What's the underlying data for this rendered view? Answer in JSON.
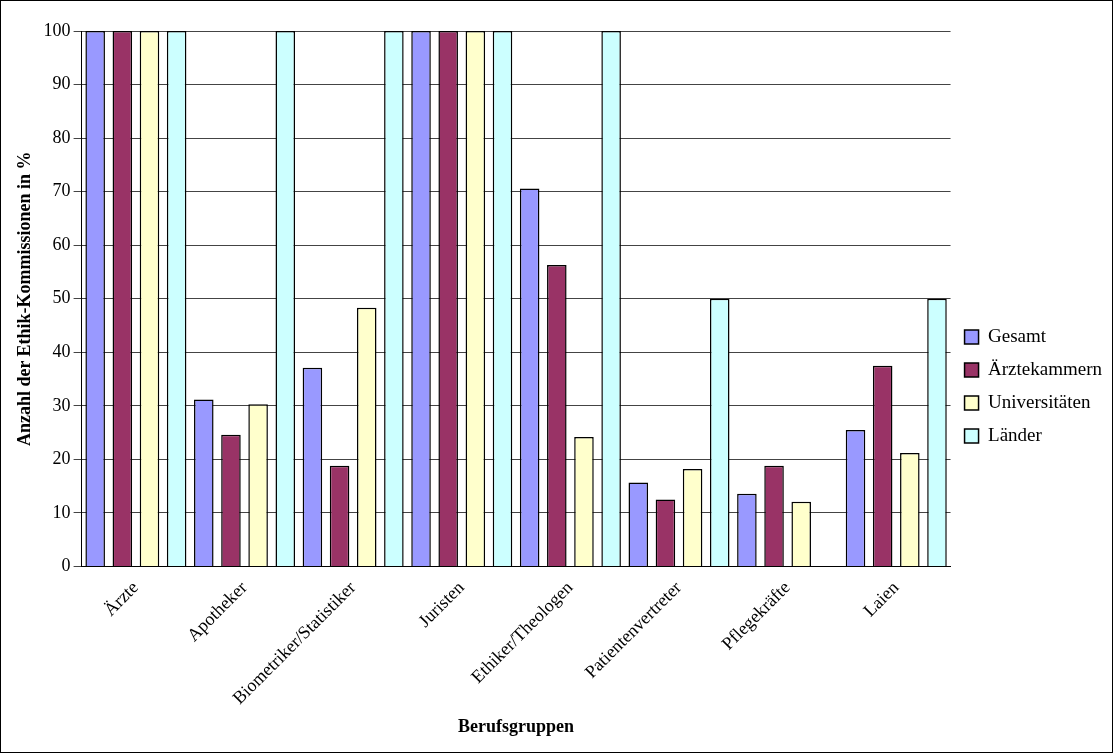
{
  "chart_data": {
    "type": "bar",
    "xlabel": "Berufsgruppen",
    "ylabel": "Anzahl der Ethik-Kommissionen in %",
    "categories": [
      "Ärzte",
      "Apotheker",
      "Biometriker/Statistiker",
      "Juristen",
      "Ethiker/Theologen",
      "Patientenvertreter",
      "Pflegekräfte",
      "Laien"
    ],
    "series": [
      {
        "name": "Gesamt",
        "color": "#9999ff",
        "values": [
          100,
          31.2,
          37.1,
          100,
          70.6,
          15.7,
          13.6,
          25.5
        ]
      },
      {
        "name": "Ärztekammern",
        "color": "#993366",
        "values": [
          100,
          24.6,
          18.8,
          100,
          56.3,
          12.5,
          18.8,
          37.5
        ]
      },
      {
        "name": "Universitäten",
        "color": "#ffffcc",
        "values": [
          100,
          30.3,
          48.3,
          100,
          24.2,
          18.2,
          12.1,
          21.2
        ]
      },
      {
        "name": "Länder",
        "color": "#ccffff",
        "values": [
          100,
          100,
          100,
          100,
          100,
          50,
          0,
          50
        ]
      }
    ],
    "ylim": [
      0,
      100
    ],
    "yticks": [
      0,
      10,
      20,
      30,
      40,
      50,
      60,
      70,
      80,
      90,
      100
    ],
    "grid": "y",
    "legend": "right"
  }
}
